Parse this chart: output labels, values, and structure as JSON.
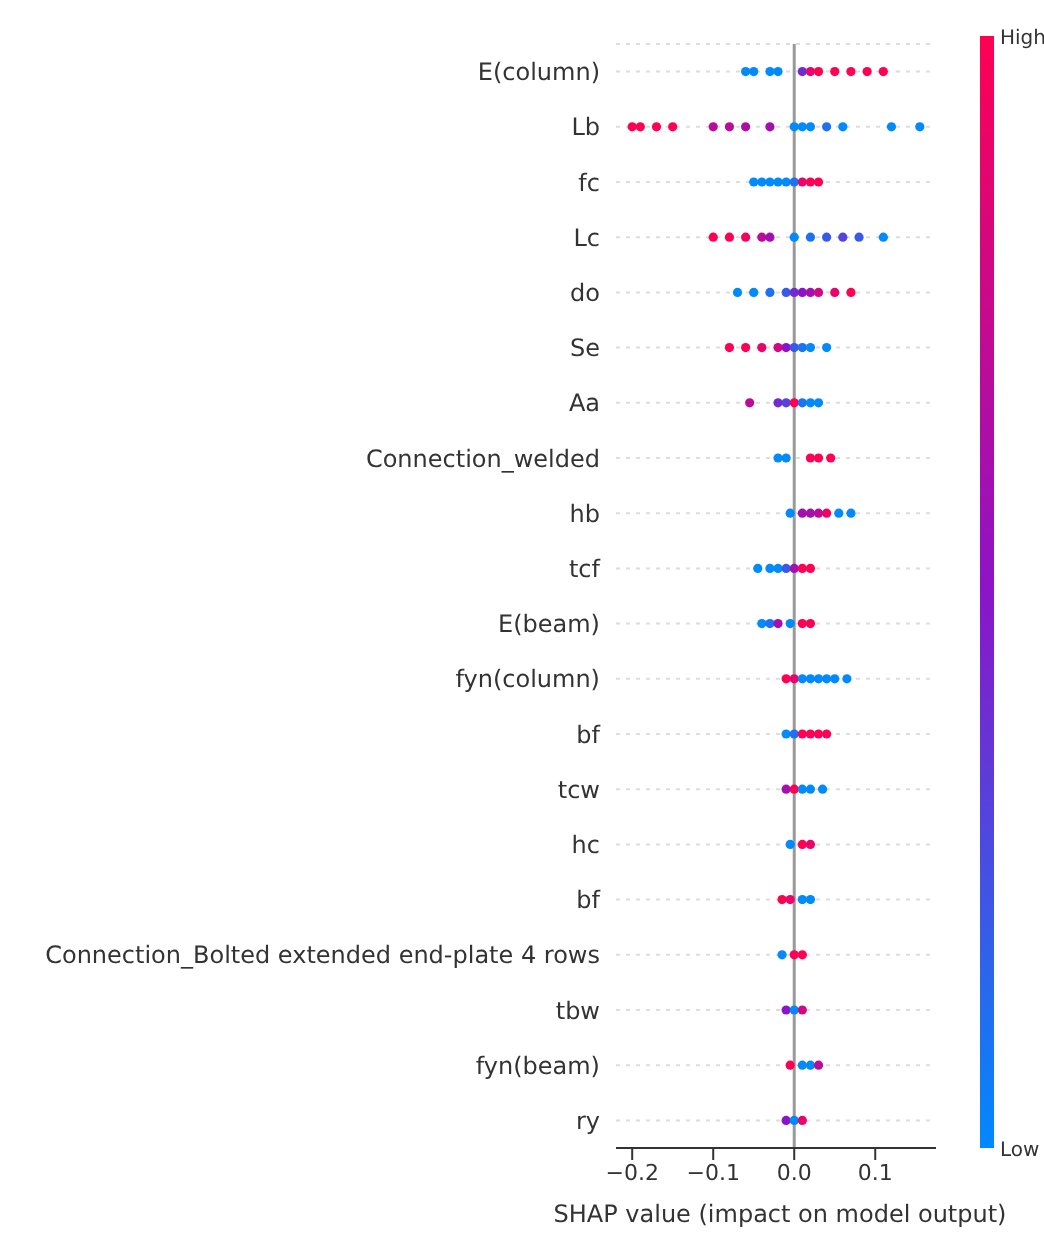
{
  "chart_data": {
    "type": "scatter",
    "orientation": "horizontal",
    "xlabel": "SHAP value (impact on model output)",
    "categories": [
      "E(column)",
      "Lb",
      "fc",
      "Lc",
      "do",
      "Se",
      "Aa",
      "Connection_welded",
      "hb",
      "tcf",
      "E(beam)",
      "fyn(column)",
      "bf",
      "tcw",
      "hc",
      "bf",
      "Connection_Bolted extended end-plate 4 rows",
      "tbw",
      "fyn(beam)",
      "ry"
    ],
    "xlim": [
      -0.22,
      0.175
    ],
    "xticks": [
      {
        "value": -0.2,
        "label": "−0.2"
      },
      {
        "value": -0.1,
        "label": "−0.1"
      },
      {
        "value": 0,
        "label": "0.0"
      },
      {
        "value": 0.1,
        "label": "0.1"
      }
    ],
    "grid": "y",
    "marker": "circle",
    "clim": [
      0,
      1
    ],
    "cticks": [
      {
        "value": 0,
        "label": "Low"
      },
      {
        "value": 1,
        "label": "High"
      }
    ],
    "ref_lines": [
      {
        "axis": "x",
        "value": 0,
        "color": "#999999"
      }
    ],
    "series": [
      {
        "values": [
          -0.06,
          -0.2,
          -0.05,
          -0.1,
          -0.07,
          -0.08,
          -0.055,
          -0.02,
          -0.005,
          -0.045,
          -0.04,
          -0.01,
          -0.01,
          -0.01,
          -0.005,
          -0.015,
          -0.015,
          -0.01,
          -0.005,
          -0.01
        ],
        "colors": [
          "#008afb",
          "#ff0052",
          "#008afb",
          "#ff0052",
          "#008afb",
          "#ff0052",
          "#ba0c99",
          "#008afb",
          "#008afb",
          "#008afb",
          "#008afb",
          "#ff0052",
          "#008afb",
          "#a310b0",
          "#008afb",
          "#ff0052",
          "#008afb",
          "#8c14c8",
          "#ff0052",
          "#8c14c8"
        ]
      },
      {
        "values": [
          -0.05,
          -0.19,
          -0.04,
          -0.08,
          -0.05,
          -0.06,
          -0.02,
          -0.01,
          0.01,
          -0.03,
          -0.03,
          0,
          0,
          0,
          0.01,
          -0.005,
          0,
          0,
          0.01,
          0
        ],
        "colors": [
          "#008afb",
          "#ff0052",
          "#008afb",
          "#ff0052",
          "#008afb",
          "#ff0052",
          "#702cd2",
          "#008afb",
          "#a310b0",
          "#008afb",
          "#1c72f1",
          "#e8046a",
          "#1c72f1",
          "#ff0052",
          "#ff0052",
          "#e8046a",
          "#ff0052",
          "#008afb",
          "#008afb",
          "#008afb"
        ]
      },
      {
        "values": [
          -0.03,
          -0.17,
          -0.03,
          -0.06,
          -0.03,
          -0.04,
          -0.01,
          0.02,
          0.02,
          -0.02,
          -0.02,
          0.01,
          0.01,
          0.01,
          0.02,
          0.01,
          0.01,
          0.01,
          0.02,
          0.01
        ],
        "colors": [
          "#008afb",
          "#ff0052",
          "#008afb",
          "#f4025e",
          "#1c72f1",
          "#e8046a",
          "#5443dc",
          "#ff0052",
          "#a310b0",
          "#008afb",
          "#a310b0",
          "#008afb",
          "#ff0052",
          "#008afb",
          "#e8046a",
          "#008afb",
          "#ff0052",
          "#d10881",
          "#008afb",
          "#e8046a"
        ]
      },
      {
        "values": [
          -0.02,
          -0.15,
          -0.02,
          -0.04,
          -0.01,
          -0.02,
          0,
          0.03,
          0.03,
          -0.01,
          -0.005,
          0.02,
          0.02,
          0.02,
          null,
          0.02,
          null,
          null,
          0.03,
          null
        ],
        "colors": [
          "#008afb",
          "#ff0052",
          "#008afb",
          "#ba0c99",
          "#385be7",
          "#d10881",
          "#ff0052",
          "#ff0052",
          "#ba0c99",
          "#385be7",
          "#008afb",
          "#008afb",
          "#ff0052",
          "#008afb",
          null,
          "#008afb",
          null,
          null,
          "#ba0c99",
          null
        ]
      },
      {
        "values": [
          0.01,
          -0.1,
          -0.01,
          -0.03,
          0,
          -0.01,
          0.01,
          0.045,
          0.04,
          0,
          0.01,
          0.03,
          0.03,
          0.035,
          null,
          null,
          null,
          null,
          null,
          null
        ],
        "colors": [
          "#702cd2",
          "#ba0c99",
          "#008afb",
          "#a310b0",
          "#702cd2",
          "#8c14c8",
          "#1c72f1",
          "#ff0052",
          "#f4025e",
          "#a310b0",
          "#ff0052",
          "#008afb",
          "#ff0052",
          "#008afb",
          null,
          null,
          null,
          null,
          null,
          null
        ]
      },
      {
        "values": [
          0.02,
          -0.08,
          0,
          0,
          0.01,
          0,
          0.02,
          null,
          0.055,
          0.01,
          0.02,
          0.04,
          0.04,
          null,
          null,
          null,
          null,
          null,
          null,
          null
        ],
        "colors": [
          "#e8046a",
          "#ba0c99",
          "#1c72f1",
          "#008afb",
          "#8c14c8",
          "#385be7",
          "#008afb",
          null,
          "#008afb",
          "#ff0052",
          "#ff0052",
          "#008afb",
          "#ff0052",
          null,
          null,
          null,
          null,
          null,
          null,
          null
        ]
      },
      {
        "values": [
          0.03,
          -0.06,
          0.01,
          0.02,
          0.02,
          0.01,
          0.03,
          null,
          0.07,
          0.02,
          null,
          0.05,
          null,
          null,
          null,
          null,
          null,
          null,
          null,
          null
        ],
        "colors": [
          "#ff0052",
          "#af0ea5",
          "#e8046a",
          "#1c72f1",
          "#a310b0",
          "#1c72f1",
          "#008afb",
          null,
          "#008afb",
          "#ff0052",
          null,
          "#008afb",
          null,
          null,
          null,
          null,
          null,
          null,
          null,
          null
        ]
      },
      {
        "values": [
          0.05,
          -0.03,
          0.02,
          0.04,
          0.03,
          0.02,
          null,
          null,
          null,
          null,
          null,
          0.065,
          null,
          null,
          null,
          null,
          null,
          null,
          null,
          null
        ],
        "colors": [
          "#ff0052",
          "#a310b0",
          "#ff0052",
          "#385be7",
          "#d10881",
          "#008afb",
          null,
          null,
          null,
          null,
          null,
          "#008afb",
          null,
          null,
          null,
          null,
          null,
          null,
          null,
          null
        ]
      },
      {
        "values": [
          0.07,
          0,
          0.03,
          0.06,
          0.05,
          0.04,
          null,
          null,
          null,
          null,
          null,
          null,
          null,
          null,
          null,
          null,
          null,
          null,
          null,
          null
        ],
        "colors": [
          "#ff0052",
          "#008afb",
          "#ff0052",
          "#5443dc",
          "#e8046a",
          "#008afb",
          null,
          null,
          null,
          null,
          null,
          null,
          null,
          null,
          null,
          null,
          null,
          null,
          null,
          null
        ]
      },
      {
        "values": [
          0.09,
          0.01,
          null,
          0.08,
          0.07,
          null,
          null,
          null,
          null,
          null,
          null,
          null,
          null,
          null,
          null,
          null,
          null,
          null,
          null,
          null
        ],
        "colors": [
          "#ff0052",
          "#008afb",
          null,
          "#385be7",
          "#ff0052",
          null,
          null,
          null,
          null,
          null,
          null,
          null,
          null,
          null,
          null,
          null,
          null,
          null,
          null,
          null
        ]
      },
      {
        "values": [
          0.11,
          0.02,
          null,
          0.11,
          null,
          null,
          null,
          null,
          null,
          null,
          null,
          null,
          null,
          null,
          null,
          null,
          null,
          null,
          null,
          null
        ],
        "colors": [
          "#ff0052",
          "#008afb",
          null,
          "#008afb",
          null,
          null,
          null,
          null,
          null,
          null,
          null,
          null,
          null,
          null,
          null,
          null,
          null,
          null,
          null,
          null
        ]
      },
      {
        "values": [
          null,
          0.04,
          null,
          null,
          null,
          null,
          null,
          null,
          null,
          null,
          null,
          null,
          null,
          null,
          null,
          null,
          null,
          null,
          null,
          null
        ],
        "color": "#1c72f1"
      },
      {
        "values": [
          null,
          0.06,
          null,
          null,
          null,
          null,
          null,
          null,
          null,
          null,
          null,
          null,
          null,
          null,
          null,
          null,
          null,
          null,
          null,
          null
        ],
        "color": "#008afb"
      },
      {
        "values": [
          null,
          0.12,
          null,
          null,
          null,
          null,
          null,
          null,
          null,
          null,
          null,
          null,
          null,
          null,
          null,
          null,
          null,
          null,
          null,
          null
        ],
        "color": "#008afb"
      },
      {
        "values": [
          null,
          0.155,
          null,
          null,
          null,
          null,
          null,
          null,
          null,
          null,
          null,
          null,
          null,
          null,
          null,
          null,
          null,
          null,
          null,
          null
        ],
        "color": "#008afb"
      }
    ]
  }
}
